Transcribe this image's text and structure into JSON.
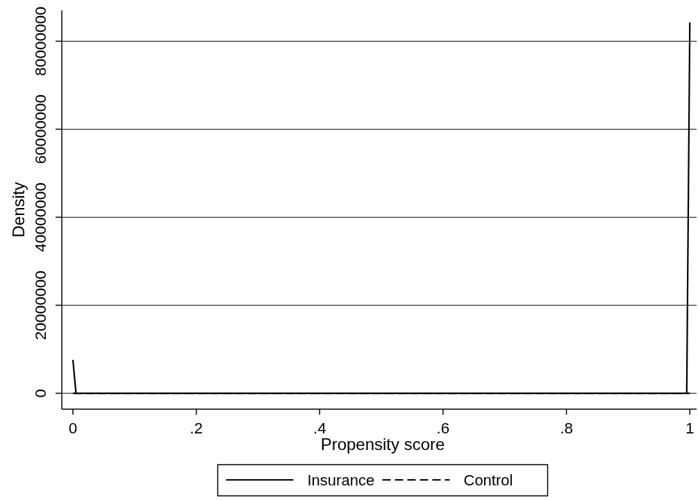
{
  "chart_data": {
    "type": "line",
    "xlabel": "Propensity score",
    "ylabel": "Density",
    "xlim": [
      -0.018,
      1.011
    ],
    "xticks": [
      0,
      {
        "value": 0.2,
        "label": ".2"
      },
      {
        "value": 0.4,
        "label": ".4"
      },
      {
        "value": 0.6,
        "label": ".6"
      },
      {
        "value": 0.8,
        "label": ".8"
      },
      1
    ],
    "ylim": [
      -3600000,
      87000000
    ],
    "yticks": [
      0,
      20000000,
      40000000,
      60000000,
      80000000
    ],
    "grid": "y",
    "legend": "bottom",
    "series": [
      {
        "name": "Insurance",
        "color": "#000000",
        "line_style": "solid",
        "x": [
          0,
          0.005,
          0.995,
          1
        ],
        "values": [
          7600000,
          0,
          0,
          84300000
        ]
      },
      {
        "name": "Control",
        "color": "#000000",
        "line_style": "dashed",
        "x": [
          0,
          1
        ],
        "values": [
          0,
          0
        ]
      }
    ]
  }
}
